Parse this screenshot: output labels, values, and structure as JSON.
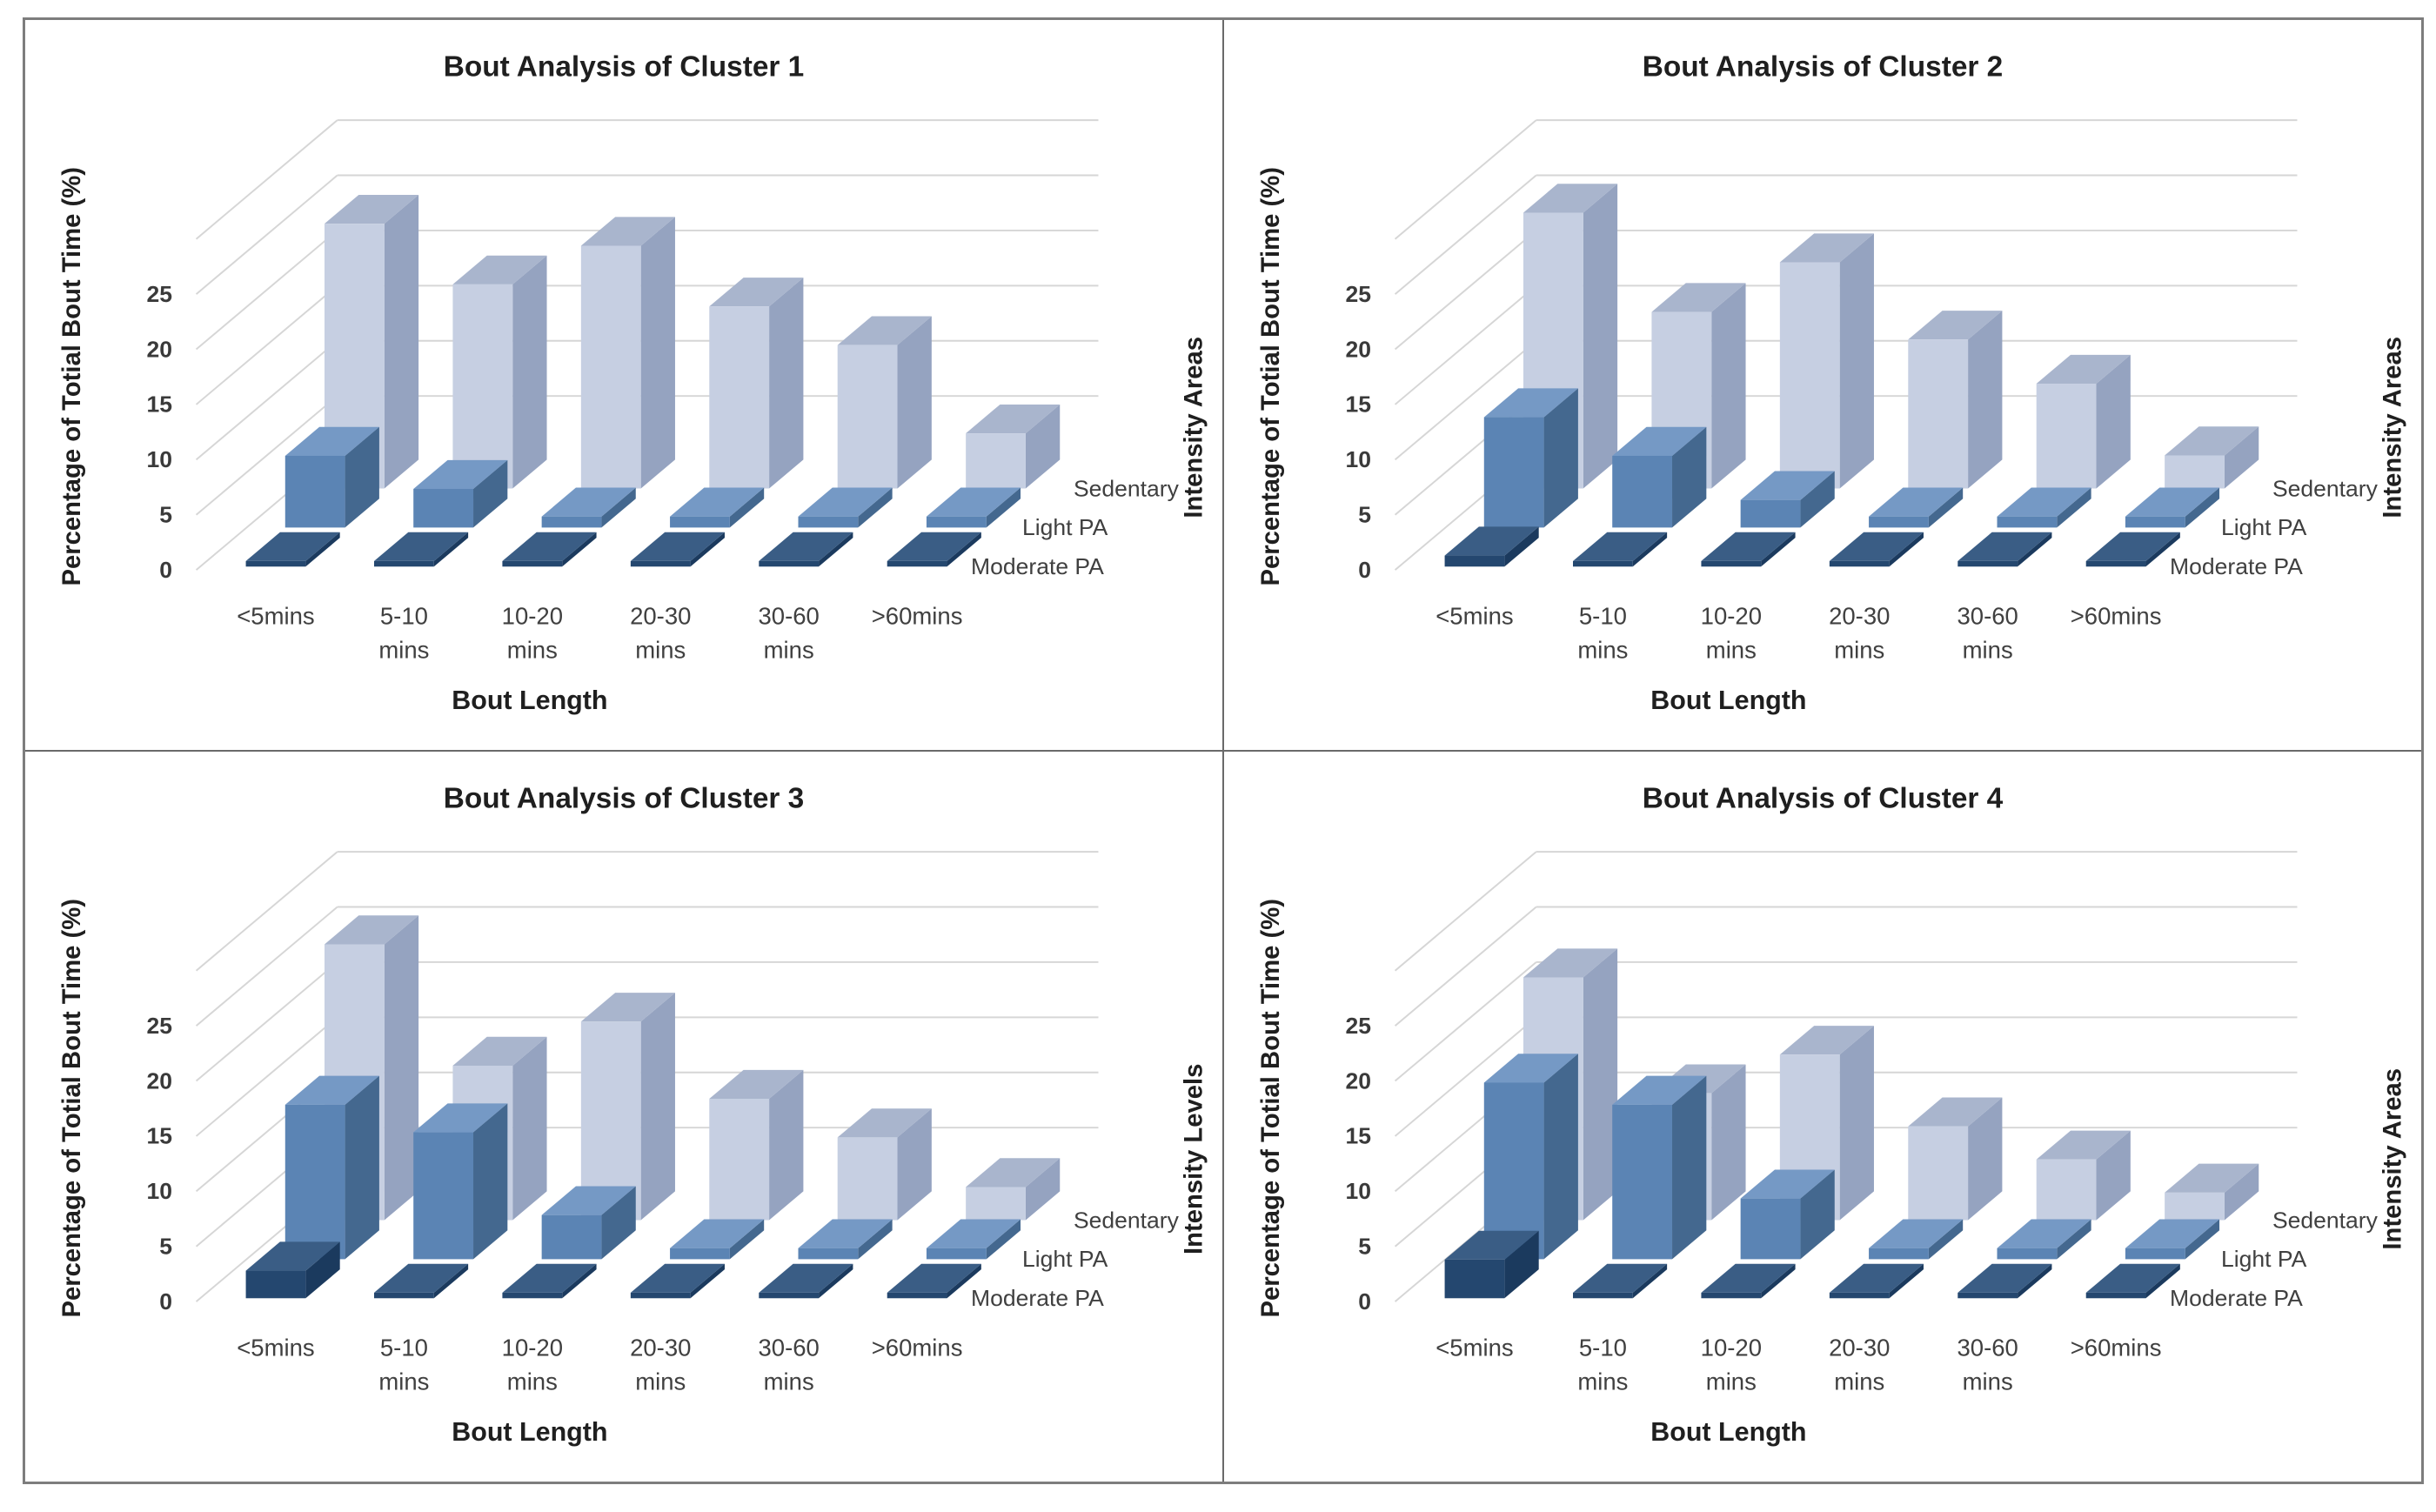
{
  "page": {
    "background": "#ffffff",
    "outer_border_color": "#7d7d7d",
    "divider_color": "#6a6a6a"
  },
  "colors": {
    "sedentary": {
      "front": "#c6cfe2",
      "top": "#a9b5cd",
      "side": "#95a3c0"
    },
    "light_pa": {
      "front": "#5b84b4",
      "top": "#7599c5",
      "side": "#44688f"
    },
    "moderate_pa": {
      "front": "#24476f",
      "top": "#3a5d85",
      "side": "#1b3a5e"
    },
    "gridline": "#d6d6d6",
    "tick_text": "#3a3a3a",
    "label_text": "#404040",
    "title_text": "#1f1f1f"
  },
  "chart_data": [
    {
      "type": "bar3d",
      "title": "Bout Analysis of Cluster 1",
      "xlabel": "Bout Length",
      "ylabel": "Percentage of Totial Bout Time (%)",
      "depth_axis_label": "Intensity Areas",
      "categories": [
        "<5mins",
        "5-10 mins",
        "10-20 mins",
        "20-30 mins",
        "30-60 mins",
        ">60mins"
      ],
      "category_lines": [
        [
          "<5mins"
        ],
        [
          "5-10",
          "mins"
        ],
        [
          "10-20",
          "mins"
        ],
        [
          "20-30",
          "mins"
        ],
        [
          "30-60",
          "mins"
        ],
        [
          ">60mins"
        ]
      ],
      "yticks": [
        0,
        5,
        10,
        15,
        20,
        25
      ],
      "ylim": [
        0,
        30
      ],
      "grid": true,
      "legend_position": "right-of-rows",
      "series": [
        {
          "name": "Sedentary",
          "depth_row": "back",
          "color_key": "sedentary",
          "values": [
            24,
            18.5,
            22,
            16.5,
            13,
            5
          ]
        },
        {
          "name": "Light PA",
          "depth_row": "middle",
          "color_key": "light_pa",
          "values": [
            6.5,
            3.5,
            1,
            1,
            1,
            1
          ]
        },
        {
          "name": "Moderate PA",
          "depth_row": "front",
          "color_key": "moderate_pa",
          "values": [
            0.5,
            0.5,
            0.5,
            0.5,
            0.5,
            0.5
          ]
        }
      ]
    },
    {
      "type": "bar3d",
      "title": "Bout Analysis of Cluster 2",
      "xlabel": "Bout Length",
      "ylabel": "Percentage of Totial Bout Time (%)",
      "depth_axis_label": "Intensity Areas",
      "categories": [
        "<5mins",
        "5-10 mins",
        "10-20 mins",
        "20-30 mins",
        "30-60 mins",
        ">60mins"
      ],
      "category_lines": [
        [
          "<5mins"
        ],
        [
          "5-10",
          "mins"
        ],
        [
          "10-20",
          "mins"
        ],
        [
          "20-30",
          "mins"
        ],
        [
          "30-60",
          "mins"
        ],
        [
          ">60mins"
        ]
      ],
      "yticks": [
        0,
        5,
        10,
        15,
        20,
        25
      ],
      "ylim": [
        0,
        30
      ],
      "grid": true,
      "legend_position": "right-of-rows",
      "series": [
        {
          "name": "Sedentary",
          "depth_row": "back",
          "color_key": "sedentary",
          "values": [
            25,
            16,
            20.5,
            13.5,
            9.5,
            3
          ]
        },
        {
          "name": "Light PA",
          "depth_row": "middle",
          "color_key": "light_pa",
          "values": [
            10,
            6.5,
            2.5,
            1,
            1,
            1
          ]
        },
        {
          "name": "Moderate PA",
          "depth_row": "front",
          "color_key": "moderate_pa",
          "values": [
            1,
            0.5,
            0.5,
            0.5,
            0.5,
            0.5
          ]
        }
      ]
    },
    {
      "type": "bar3d",
      "title": "Bout Analysis of Cluster 3",
      "xlabel": "Bout Length",
      "ylabel": "Percentage of Totial Bout Time (%)",
      "depth_axis_label": "Intensity Levels",
      "categories": [
        "<5mins",
        "5-10 mins",
        "10-20 mins",
        "20-30 mins",
        "30-60 mins",
        ">60mins"
      ],
      "category_lines": [
        [
          "<5mins"
        ],
        [
          "5-10",
          "mins"
        ],
        [
          "10-20",
          "mins"
        ],
        [
          "20-30",
          "mins"
        ],
        [
          "30-60",
          "mins"
        ],
        [
          ">60mins"
        ]
      ],
      "yticks": [
        0,
        5,
        10,
        15,
        20,
        25
      ],
      "ylim": [
        0,
        30
      ],
      "grid": true,
      "legend_position": "right-of-rows",
      "series": [
        {
          "name": "Sedentary",
          "depth_row": "back",
          "color_key": "sedentary",
          "values": [
            25,
            14,
            18,
            11,
            7.5,
            3
          ]
        },
        {
          "name": "Light PA",
          "depth_row": "middle",
          "color_key": "light_pa",
          "values": [
            14,
            11.5,
            4,
            1,
            1,
            1
          ]
        },
        {
          "name": "Moderate PA",
          "depth_row": "front",
          "color_key": "moderate_pa",
          "values": [
            2.5,
            0.5,
            0.5,
            0.5,
            0.5,
            0.5
          ]
        }
      ]
    },
    {
      "type": "bar3d",
      "title": "Bout Analysis of Cluster 4",
      "xlabel": "Bout Length",
      "ylabel": "Percentage of Totial Bout Time (%)",
      "depth_axis_label": "Intensity Areas",
      "categories": [
        "<5mins",
        "5-10 mins",
        "10-20 mins",
        "20-30 mins",
        "30-60 mins",
        ">60mins"
      ],
      "category_lines": [
        [
          "<5mins"
        ],
        [
          "5-10",
          "mins"
        ],
        [
          "10-20",
          "mins"
        ],
        [
          "20-30",
          "mins"
        ],
        [
          "30-60",
          "mins"
        ],
        [
          ">60mins"
        ]
      ],
      "yticks": [
        0,
        5,
        10,
        15,
        20,
        25
      ],
      "ylim": [
        0,
        30
      ],
      "grid": true,
      "legend_position": "right-of-rows",
      "series": [
        {
          "name": "Sedentary",
          "depth_row": "back",
          "color_key": "sedentary",
          "values": [
            22,
            11.5,
            15,
            8.5,
            5.5,
            2.5
          ]
        },
        {
          "name": "Light PA",
          "depth_row": "middle",
          "color_key": "light_pa",
          "values": [
            16,
            14,
            5.5,
            1,
            1,
            1
          ]
        },
        {
          "name": "Moderate PA",
          "depth_row": "front",
          "color_key": "moderate_pa",
          "values": [
            3.5,
            0.5,
            0.5,
            0.5,
            0.5,
            0.5
          ]
        }
      ]
    }
  ]
}
